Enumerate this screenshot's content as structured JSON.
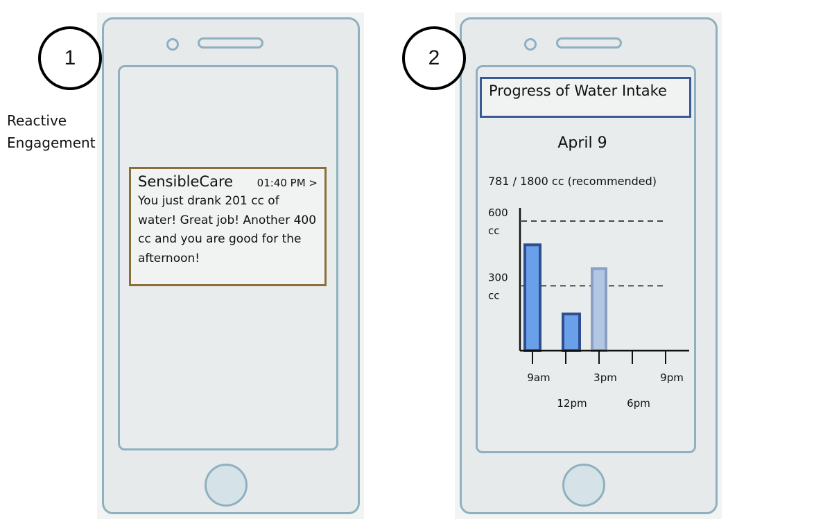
{
  "steps": [
    {
      "number": "1",
      "label_lines": [
        "Reactive",
        "Engagement"
      ]
    },
    {
      "number": "2"
    }
  ],
  "notification": {
    "app_name": "SensibleCare",
    "time": "01:40 PM >",
    "message": "You just drank 201 cc of water! Great job! Another 400 cc and you are good for the afternoon!"
  },
  "progress_screen": {
    "title": "Progress of Water Intake",
    "date": "April   9",
    "summary": "781 / 1800 cc (recommended)"
  },
  "colors": {
    "phone_outline": "#8fb0c0",
    "notification_border": "#8b6f3a",
    "title_border": "#3a5a95",
    "bar_primary": "#6aa0ea",
    "bar_primary_outline": "#2d4f8f",
    "bar_faded": "#b3c6e2",
    "bar_faded_outline": "#8a9fc4"
  },
  "chart_data": {
    "type": "bar",
    "ylim": [
      0,
      600
    ],
    "yticks": [
      {
        "value": 600,
        "label_lines": [
          "600",
          "cc"
        ]
      },
      {
        "value": 300,
        "label_lines": [
          "300",
          "cc"
        ]
      }
    ],
    "x_ticks": [
      {
        "value": 9,
        "label": "9am"
      },
      {
        "value": 12,
        "label": "12pm"
      },
      {
        "value": 15,
        "label": "3pm"
      },
      {
        "value": 18,
        "label": "6pm"
      },
      {
        "value": 21,
        "label": "9pm"
      }
    ],
    "bars": [
      {
        "x": 9,
        "value": 490,
        "style": "primary"
      },
      {
        "x": 12.5,
        "value": 170,
        "style": "primary-dark"
      },
      {
        "x": 15,
        "value": 380,
        "style": "faded"
      }
    ]
  }
}
